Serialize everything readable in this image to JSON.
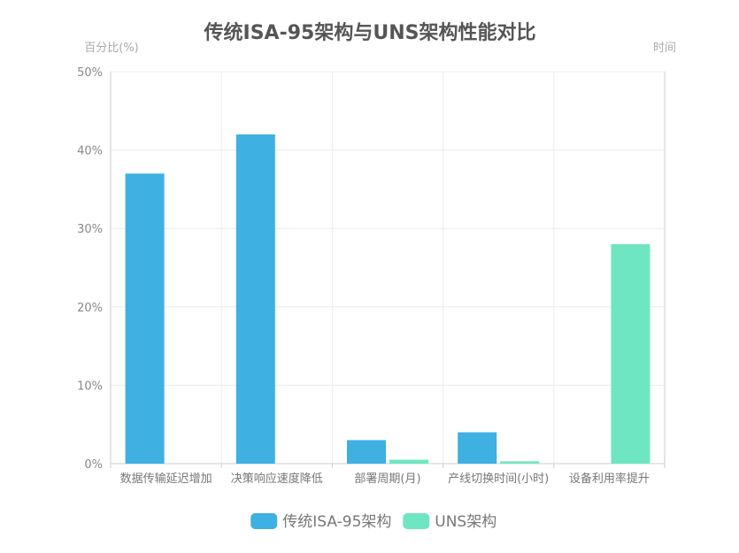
{
  "chart_data": {
    "type": "bar",
    "title": "传统ISA-95架构与UNS架构性能对比",
    "ylabel": "百分比(%)",
    "xlabel": "时间",
    "categories": [
      "数据传输延迟增加",
      "决策响应速度降低",
      "部署周期(月)",
      "产线切换时间(小时)",
      "设备利用率提升"
    ],
    "series": [
      {
        "name": "传统ISA-95架构",
        "values": [
          37,
          42,
          3,
          4,
          0
        ],
        "color": "#3eb0e2"
      },
      {
        "name": "UNS架构",
        "values": [
          0,
          0,
          0.5,
          0.3,
          28
        ],
        "color": "#6ee6c2"
      }
    ],
    "ylim": [
      0,
      50
    ],
    "yticks": [
      0,
      10,
      20,
      30,
      40,
      50
    ],
    "ytick_labels": [
      "0%",
      "10%",
      "20%",
      "30%",
      "40%",
      "50%"
    ],
    "grid": true,
    "legend_position": "bottom"
  }
}
